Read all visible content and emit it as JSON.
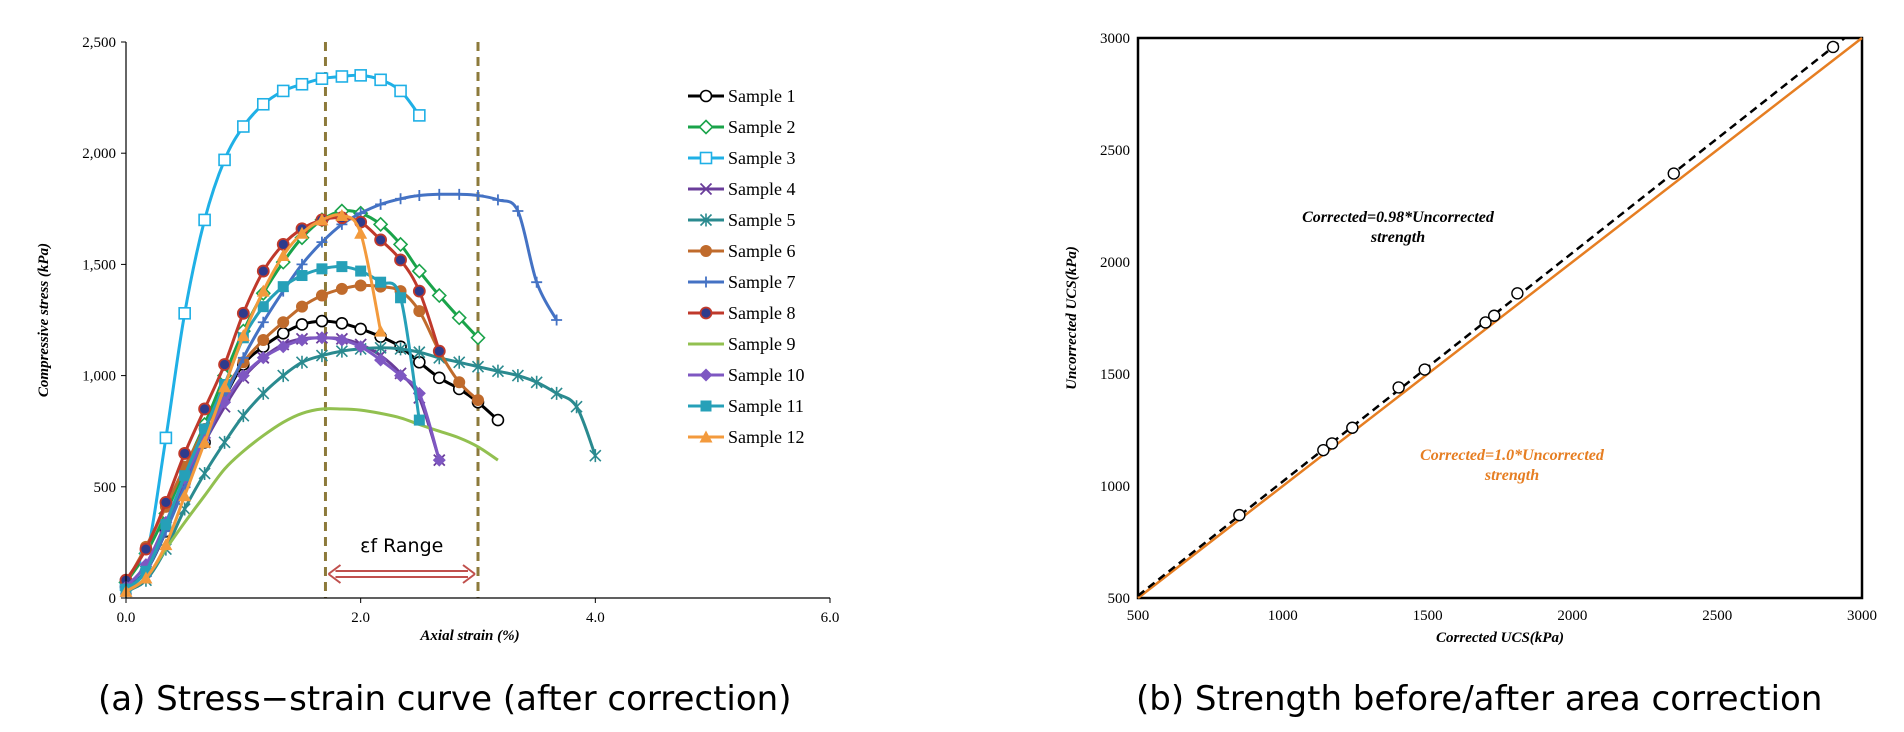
{
  "chart_data": [
    {
      "type": "line",
      "xlabel": "Axial strain (%)",
      "ylabel": "Compressive stress (kPa)",
      "xlim": [
        0,
        6
      ],
      "ylim": [
        0,
        2500
      ],
      "xticks": [
        "0.0",
        "2.0",
        "4.0",
        "6.0"
      ],
      "yticks": [
        "0",
        "500",
        "1,000",
        "1,500",
        "2,000",
        "2,500"
      ],
      "legend": "right",
      "grid": false,
      "caption": "(a) Stress−strain curve (after correction)",
      "range_annotation": {
        "label": "εf Range",
        "x_from": 1.7,
        "x_to": 3.0
      },
      "series": [
        {
          "name": "Sample 1",
          "color": "#000000",
          "marker": "circle-open",
          "points": [
            [
              0,
              50
            ],
            [
              0.17,
              120
            ],
            [
              0.34,
              300
            ],
            [
              0.5,
              520
            ],
            [
              0.67,
              700
            ],
            [
              0.84,
              900
            ],
            [
              1.0,
              1050
            ],
            [
              1.17,
              1130
            ],
            [
              1.34,
              1190
            ],
            [
              1.5,
              1230
            ],
            [
              1.67,
              1245
            ],
            [
              1.84,
              1235
            ],
            [
              2.0,
              1210
            ],
            [
              2.17,
              1175
            ],
            [
              2.34,
              1130
            ],
            [
              2.5,
              1060
            ],
            [
              2.67,
              990
            ],
            [
              2.84,
              940
            ],
            [
              3.0,
              880
            ],
            [
              3.17,
              800
            ]
          ]
        },
        {
          "name": "Sample 2",
          "color": "#1aa34a",
          "marker": "diamond-open",
          "points": [
            [
              0,
              70
            ],
            [
              0.17,
              200
            ],
            [
              0.34,
              380
            ],
            [
              0.5,
              580
            ],
            [
              0.67,
              780
            ],
            [
              0.84,
              1000
            ],
            [
              1.0,
              1200
            ],
            [
              1.17,
              1370
            ],
            [
              1.34,
              1510
            ],
            [
              1.5,
              1620
            ],
            [
              1.67,
              1700
            ],
            [
              1.84,
              1740
            ],
            [
              2.0,
              1730
            ],
            [
              2.17,
              1680
            ],
            [
              2.34,
              1590
            ],
            [
              2.5,
              1470
            ],
            [
              2.67,
              1360
            ],
            [
              2.84,
              1260
            ],
            [
              3.0,
              1170
            ]
          ]
        },
        {
          "name": "Sample 3",
          "color": "#1fb0e6",
          "marker": "square-open",
          "points": [
            [
              0,
              60
            ],
            [
              0.17,
              180
            ],
            [
              0.34,
              720
            ],
            [
              0.5,
              1280
            ],
            [
              0.67,
              1700
            ],
            [
              0.84,
              1970
            ],
            [
              1.0,
              2120
            ],
            [
              1.17,
              2220
            ],
            [
              1.34,
              2280
            ],
            [
              1.5,
              2310
            ],
            [
              1.67,
              2335
            ],
            [
              1.84,
              2345
            ],
            [
              2.0,
              2350
            ],
            [
              2.17,
              2330
            ],
            [
              2.34,
              2280
            ],
            [
              2.5,
              2170
            ]
          ]
        },
        {
          "name": "Sample 4",
          "color": "#6a3d9a",
          "marker": "x",
          "points": [
            [
              0,
              40
            ],
            [
              0.17,
              120
            ],
            [
              0.34,
              320
            ],
            [
              0.5,
              520
            ],
            [
              0.67,
              700
            ],
            [
              0.84,
              860
            ],
            [
              1.0,
              990
            ],
            [
              1.17,
              1080
            ],
            [
              1.34,
              1140
            ],
            [
              1.5,
              1165
            ],
            [
              1.67,
              1170
            ],
            [
              1.84,
              1165
            ],
            [
              2.0,
              1140
            ],
            [
              2.17,
              1090
            ],
            [
              2.34,
              1010
            ],
            [
              2.5,
              900
            ],
            [
              2.67,
              620
            ]
          ]
        },
        {
          "name": "Sample 5",
          "color": "#2a8a8f",
          "marker": "star",
          "points": [
            [
              0,
              30
            ],
            [
              0.17,
              80
            ],
            [
              0.34,
              220
            ],
            [
              0.5,
              400
            ],
            [
              0.67,
              560
            ],
            [
              0.84,
              700
            ],
            [
              1.0,
              820
            ],
            [
              1.17,
              920
            ],
            [
              1.34,
              1000
            ],
            [
              1.5,
              1060
            ],
            [
              1.67,
              1090
            ],
            [
              1.84,
              1110
            ],
            [
              2.0,
              1120
            ],
            [
              2.17,
              1125
            ],
            [
              2.34,
              1120
            ],
            [
              2.5,
              1105
            ],
            [
              2.67,
              1080
            ],
            [
              2.84,
              1060
            ],
            [
              3.0,
              1040
            ],
            [
              3.17,
              1020
            ],
            [
              3.34,
              1000
            ],
            [
              3.5,
              970
            ],
            [
              3.67,
              920
            ],
            [
              3.84,
              860
            ],
            [
              4.0,
              640
            ]
          ]
        },
        {
          "name": "Sample 6",
          "color": "#c06b2c",
          "marker": "circle",
          "points": [
            [
              0,
              70
            ],
            [
              0.17,
              230
            ],
            [
              0.34,
              410
            ],
            [
              0.5,
              590
            ],
            [
              0.67,
              760
            ],
            [
              0.84,
              930
            ],
            [
              1.0,
              1060
            ],
            [
              1.17,
              1160
            ],
            [
              1.34,
              1240
            ],
            [
              1.5,
              1310
            ],
            [
              1.67,
              1360
            ],
            [
              1.84,
              1390
            ],
            [
              2.0,
              1405
            ],
            [
              2.17,
              1400
            ],
            [
              2.34,
              1380
            ],
            [
              2.5,
              1290
            ],
            [
              2.67,
              1110
            ],
            [
              2.84,
              970
            ],
            [
              3.0,
              890
            ]
          ]
        },
        {
          "name": "Sample 7",
          "color": "#4472c4",
          "marker": "plus",
          "points": [
            [
              0,
              40
            ],
            [
              0.17,
              120
            ],
            [
              0.34,
              300
            ],
            [
              0.5,
              500
            ],
            [
              0.67,
              700
            ],
            [
              0.84,
              900
            ],
            [
              1.0,
              1080
            ],
            [
              1.17,
              1240
            ],
            [
              1.34,
              1380
            ],
            [
              1.5,
              1500
            ],
            [
              1.67,
              1600
            ],
            [
              1.84,
              1680
            ],
            [
              2.0,
              1730
            ],
            [
              2.17,
              1770
            ],
            [
              2.34,
              1795
            ],
            [
              2.5,
              1810
            ],
            [
              2.67,
              1815
            ],
            [
              2.84,
              1815
            ],
            [
              3.0,
              1810
            ],
            [
              3.17,
              1790
            ],
            [
              3.34,
              1740
            ],
            [
              3.5,
              1420
            ],
            [
              3.67,
              1250
            ]
          ]
        },
        {
          "name": "Sample 8",
          "color": "#c0392b",
          "marker": "circle-navy",
          "points": [
            [
              0,
              80
            ],
            [
              0.17,
              220
            ],
            [
              0.34,
              430
            ],
            [
              0.5,
              650
            ],
            [
              0.67,
              850
            ],
            [
              0.84,
              1050
            ],
            [
              1.0,
              1280
            ],
            [
              1.17,
              1470
            ],
            [
              1.34,
              1590
            ],
            [
              1.5,
              1660
            ],
            [
              1.67,
              1700
            ],
            [
              1.84,
              1710
            ],
            [
              2.0,
              1690
            ],
            [
              2.17,
              1610
            ],
            [
              2.34,
              1520
            ],
            [
              2.5,
              1380
            ],
            [
              2.67,
              1110
            ]
          ]
        },
        {
          "name": "Sample 9",
          "color": "#92c050",
          "marker": "none",
          "points": [
            [
              0,
              30
            ],
            [
              0.17,
              90
            ],
            [
              0.34,
              220
            ],
            [
              0.5,
              340
            ],
            [
              0.67,
              460
            ],
            [
              0.84,
              580
            ],
            [
              1.0,
              660
            ],
            [
              1.17,
              730
            ],
            [
              1.34,
              790
            ],
            [
              1.5,
              830
            ],
            [
              1.67,
              850
            ],
            [
              1.84,
              850
            ],
            [
              2.0,
              845
            ],
            [
              2.17,
              830
            ],
            [
              2.34,
              810
            ],
            [
              2.5,
              780
            ],
            [
              2.67,
              750
            ],
            [
              2.84,
              720
            ],
            [
              3.0,
              680
            ],
            [
              3.17,
              620
            ]
          ]
        },
        {
          "name": "Sample 10",
          "color": "#7e57c2",
          "marker": "diamond",
          "points": [
            [
              0,
              50
            ],
            [
              0.17,
              150
            ],
            [
              0.34,
              340
            ],
            [
              0.5,
              540
            ],
            [
              0.67,
              720
            ],
            [
              0.84,
              880
            ],
            [
              1.0,
              1000
            ],
            [
              1.17,
              1080
            ],
            [
              1.34,
              1130
            ],
            [
              1.5,
              1160
            ],
            [
              1.67,
              1170
            ],
            [
              1.84,
              1160
            ],
            [
              2.0,
              1130
            ],
            [
              2.17,
              1070
            ],
            [
              2.34,
              1000
            ],
            [
              2.5,
              920
            ],
            [
              2.67,
              620
            ]
          ]
        },
        {
          "name": "Sample 11",
          "color": "#26a0b8",
          "marker": "square",
          "points": [
            [
              0,
              40
            ],
            [
              0.17,
              120
            ],
            [
              0.34,
              330
            ],
            [
              0.5,
              550
            ],
            [
              0.67,
              760
            ],
            [
              0.84,
              960
            ],
            [
              1.0,
              1170
            ],
            [
              1.17,
              1310
            ],
            [
              1.34,
              1400
            ],
            [
              1.5,
              1450
            ],
            [
              1.67,
              1480
            ],
            [
              1.84,
              1490
            ],
            [
              2.0,
              1470
            ],
            [
              2.17,
              1420
            ],
            [
              2.34,
              1350
            ],
            [
              2.5,
              800
            ]
          ]
        },
        {
          "name": "Sample 12",
          "color": "#f39a3c",
          "marker": "triangle",
          "points": [
            [
              0,
              30
            ],
            [
              0.17,
              90
            ],
            [
              0.34,
              240
            ],
            [
              0.5,
              460
            ],
            [
              0.67,
              700
            ],
            [
              0.84,
              950
            ],
            [
              1.0,
              1180
            ],
            [
              1.17,
              1380
            ],
            [
              1.34,
              1540
            ],
            [
              1.5,
              1640
            ],
            [
              1.67,
              1700
            ],
            [
              1.84,
              1720
            ],
            [
              2.0,
              1640
            ],
            [
              2.17,
              1200
            ]
          ]
        }
      ]
    },
    {
      "type": "scatter",
      "xlabel": "Corrected UCS(kPa)",
      "ylabel": "Uncorrected UCS(kPa)",
      "xlim": [
        500,
        3000
      ],
      "ylim": [
        500,
        3000
      ],
      "xticks": [
        "500",
        "1000",
        "1500",
        "2000",
        "2500",
        "3000"
      ],
      "yticks": [
        "500",
        "1000",
        "1500",
        "2000",
        "2500",
        "3000"
      ],
      "grid": false,
      "caption": "(b) Strength before/after area correction",
      "points": [
        [
          850,
          870
        ],
        [
          1140,
          1160
        ],
        [
          1170,
          1190
        ],
        [
          1240,
          1260
        ],
        [
          1400,
          1440
        ],
        [
          1490,
          1520
        ],
        [
          1700,
          1730
        ],
        [
          1730,
          1760
        ],
        [
          1810,
          1860
        ],
        [
          2350,
          2395
        ],
        [
          2900,
          2960
        ]
      ],
      "fit_lines": [
        {
          "label_line1": "Corrected=0.98*Uncorrected",
          "label_line2": "strength",
          "color": "#000000",
          "style": "dashed",
          "slope_inverse": 0.98
        },
        {
          "label_line1": "Corrected=1.0*Uncorrected",
          "label_line2": "strength",
          "color": "#e67e22",
          "style": "solid",
          "slope_inverse": 1.0
        }
      ]
    }
  ]
}
